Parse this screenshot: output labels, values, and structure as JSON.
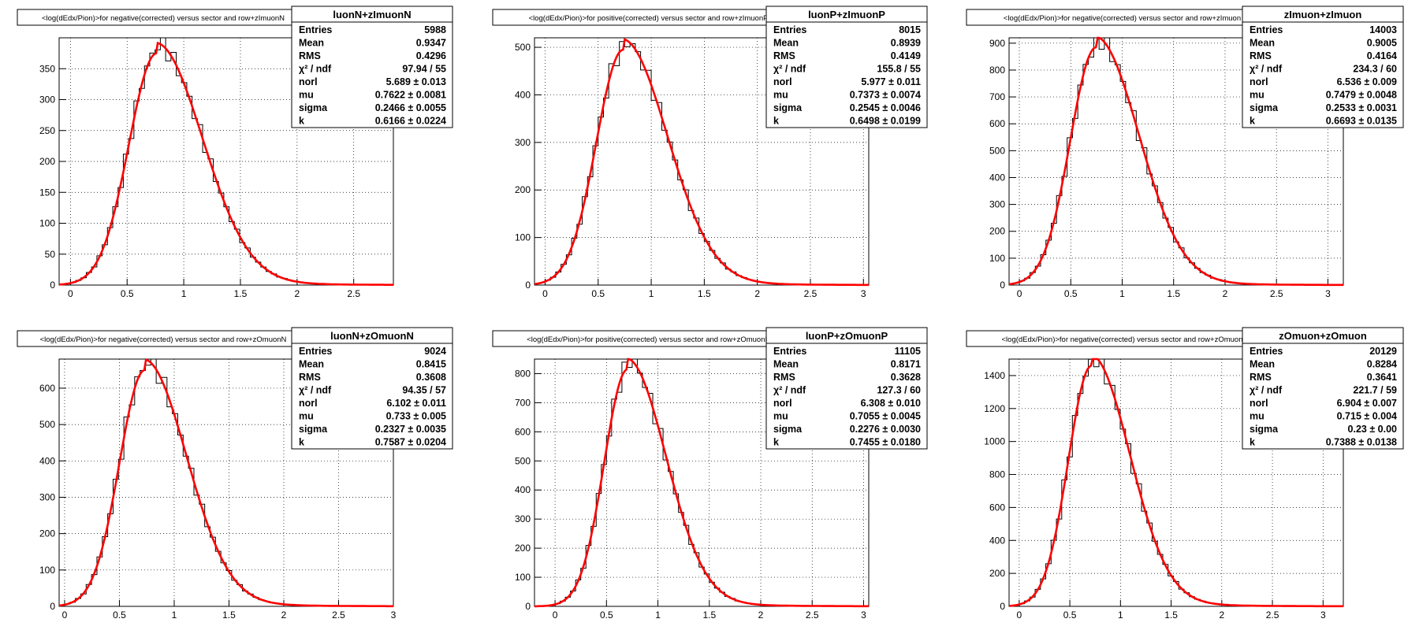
{
  "colors": {
    "fit": "#ff0000",
    "histogram": "#000000",
    "grid": "#000000"
  },
  "chart_data": [
    {
      "type": "histogram",
      "title": "<log(dEdx/Pion)>for negative(corrected) versus sector and row+zImuonN",
      "stats_name": "luonN+zImuonN",
      "stats": [
        {
          "label": "Entries",
          "value": "5988"
        },
        {
          "label": "Mean",
          "value": "0.9347"
        },
        {
          "label": "RMS",
          "value": "0.4296"
        },
        {
          "label": "χ² / ndf",
          "value": "97.94 / 55"
        },
        {
          "label": "norl",
          "value": "5.689 ± 0.013"
        },
        {
          "label": "mu",
          "value": "0.7622 ± 0.0081"
        },
        {
          "label": "sigma",
          "value": "0.2466 ± 0.0055"
        },
        {
          "label": "k",
          "value": "0.6166 ± 0.0224"
        }
      ],
      "xlim": [
        -0.1,
        2.85
      ],
      "ylim": [
        0,
        400
      ],
      "xticks": [
        0,
        0.5,
        1,
        1.5,
        2,
        2.5
      ],
      "yticks": [
        0,
        50,
        100,
        150,
        200,
        250,
        300,
        350
      ],
      "peak": 375,
      "mu": 0.7622,
      "sigma": 0.2466
    },
    {
      "type": "histogram",
      "title": "<log(dEdx/Pion)>for positive(corrected) versus sector and row+zImuonP",
      "stats_name": "luonP+zImuonP",
      "stats": [
        {
          "label": "Entries",
          "value": "8015"
        },
        {
          "label": "Mean",
          "value": "0.8939"
        },
        {
          "label": "RMS",
          "value": "0.4149"
        },
        {
          "label": "χ² / ndf",
          "value": "155.8 / 55"
        },
        {
          "label": "norl",
          "value": "5.977 ± 0.011"
        },
        {
          "label": "mu",
          "value": "0.7373 ± 0.0074"
        },
        {
          "label": "sigma",
          "value": "0.2545 ± 0.0046"
        },
        {
          "label": "k",
          "value": "0.6498 ± 0.0199"
        }
      ],
      "xlim": [
        -0.1,
        3.05
      ],
      "ylim": [
        0,
        520
      ],
      "xticks": [
        0,
        0.5,
        1,
        1.5,
        2,
        2.5,
        3
      ],
      "yticks": [
        0,
        100,
        200,
        300,
        400,
        500
      ],
      "peak": 495,
      "mu": 0.7373,
      "sigma": 0.2545
    },
    {
      "type": "histogram",
      "title": "<log(dEdx/Pion)>for negative(corrected) versus sector and row+zImuon",
      "stats_name": "zImuon+zImuon",
      "stats": [
        {
          "label": "Entries",
          "value": "14003"
        },
        {
          "label": "Mean",
          "value": "0.9005"
        },
        {
          "label": "RMS",
          "value": "0.4164"
        },
        {
          "label": "χ² / ndf",
          "value": "234.3 / 60"
        },
        {
          "label": "norl",
          "value": "6.536 ± 0.009"
        },
        {
          "label": "mu",
          "value": "0.7479 ± 0.0048"
        },
        {
          "label": "sigma",
          "value": "0.2533 ± 0.0031"
        },
        {
          "label": "k",
          "value": "0.6693 ± 0.0135"
        }
      ],
      "xlim": [
        -0.1,
        3.15
      ],
      "ylim": [
        0,
        920
      ],
      "xticks": [
        0,
        0.5,
        1,
        1.5,
        2,
        2.5,
        3
      ],
      "yticks": [
        0,
        100,
        200,
        300,
        400,
        500,
        600,
        700,
        800,
        900
      ],
      "peak": 885,
      "mu": 0.7479,
      "sigma": 0.2533
    },
    {
      "type": "histogram",
      "title": "<log(dEdx/Pion)>for negative(corrected) versus sector and row+zOmuonN",
      "stats_name": "luonN+zOmuonN",
      "stats": [
        {
          "label": "Entries",
          "value": "9024"
        },
        {
          "label": "Mean",
          "value": "0.8415"
        },
        {
          "label": "RMS",
          "value": "0.3608"
        },
        {
          "label": "χ² / ndf",
          "value": "94.35 / 57"
        },
        {
          "label": "norl",
          "value": "6.102 ± 0.011"
        },
        {
          "label": "mu",
          "value": "0.733 ± 0.005"
        },
        {
          "label": "sigma",
          "value": "0.2327 ± 0.0035"
        },
        {
          "label": "k",
          "value": "0.7587 ± 0.0204"
        }
      ],
      "xlim": [
        -0.05,
        3.0
      ],
      "ylim": [
        0,
        680
      ],
      "xticks": [
        0,
        0.5,
        1,
        1.5,
        2,
        2.5,
        3
      ],
      "yticks": [
        0,
        100,
        200,
        300,
        400,
        500,
        600
      ],
      "peak": 650,
      "mu": 0.733,
      "sigma": 0.2327
    },
    {
      "type": "histogram",
      "title": "<log(dEdx/Pion)>for positive(corrected) versus sector and row+zOmuonP",
      "stats_name": "luonP+zOmuonP",
      "stats": [
        {
          "label": "Entries",
          "value": "11105"
        },
        {
          "label": "Mean",
          "value": "0.8171"
        },
        {
          "label": "RMS",
          "value": "0.3628"
        },
        {
          "label": "χ² / ndf",
          "value": "127.3 / 60"
        },
        {
          "label": "norl",
          "value": "6.308 ± 0.010"
        },
        {
          "label": "mu",
          "value": "0.7055 ± 0.0045"
        },
        {
          "label": "sigma",
          "value": "0.2276 ± 0.0030"
        },
        {
          "label": "k",
          "value": "0.7455 ± 0.0180"
        }
      ],
      "xlim": [
        -0.2,
        3.05
      ],
      "ylim": [
        0,
        850
      ],
      "xticks": [
        0,
        0.5,
        1,
        1.5,
        2,
        2.5,
        3
      ],
      "yticks": [
        0,
        100,
        200,
        300,
        400,
        500,
        600,
        700,
        800
      ],
      "peak": 815,
      "mu": 0.7055,
      "sigma": 0.2276
    },
    {
      "type": "histogram",
      "title": "<log(dEdx/Pion)>for negative(corrected) versus sector and row+zOmuon",
      "stats_name": "zOmuon+zOmuon",
      "stats": [
        {
          "label": "Entries",
          "value": "20129"
        },
        {
          "label": "Mean",
          "value": "0.8284"
        },
        {
          "label": "RMS",
          "value": "0.3641"
        },
        {
          "label": "χ² / ndf",
          "value": "221.7 / 59"
        },
        {
          "label": "norl",
          "value": "6.904 ± 0.007"
        },
        {
          "label": "mu",
          "value": "0.715 ± 0.004"
        },
        {
          "label": "sigma",
          "value": "0.23 ± 0.00"
        },
        {
          "label": "k",
          "value": "0.7388 ± 0.0138"
        }
      ],
      "xlim": [
        -0.1,
        3.2
      ],
      "ylim": [
        0,
        1500
      ],
      "xticks": [
        0,
        0.5,
        1,
        1.5,
        2,
        2.5,
        3
      ],
      "yticks": [
        0,
        200,
        400,
        600,
        800,
        1000,
        1200,
        1400
      ],
      "peak": 1460,
      "mu": 0.715,
      "sigma": 0.23
    }
  ]
}
